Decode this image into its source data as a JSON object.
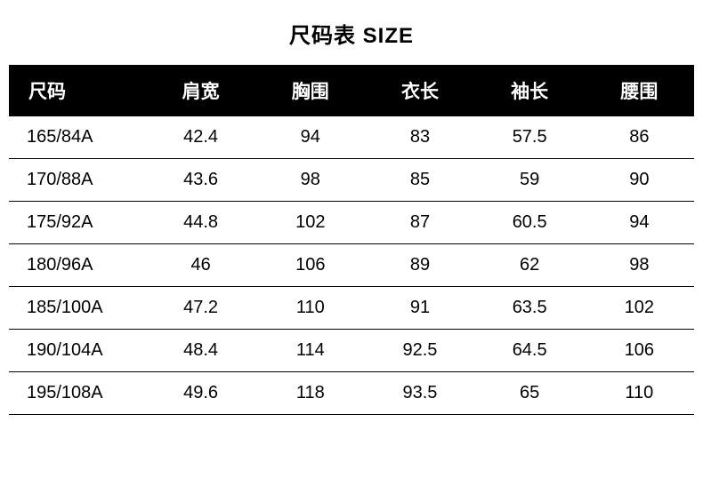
{
  "title": "尺码表 SIZE",
  "table": {
    "type": "table",
    "background_color": "#ffffff",
    "header_bg": "#000000",
    "header_color": "#ffffff",
    "row_border_color": "#000000",
    "text_color": "#000000",
    "header_fontsize": 21,
    "cell_fontsize": 20,
    "columns": [
      "尺码",
      "肩宽",
      "胸围",
      "衣长",
      "袖长",
      "腰围"
    ],
    "rows": [
      [
        "165/84A",
        "42.4",
        "94",
        "83",
        "57.5",
        "86"
      ],
      [
        "170/88A",
        "43.6",
        "98",
        "85",
        "59",
        "90"
      ],
      [
        "175/92A",
        "44.8",
        "102",
        "87",
        "60.5",
        "94"
      ],
      [
        "180/96A",
        "46",
        "106",
        "89",
        "62",
        "98"
      ],
      [
        "185/100A",
        "47.2",
        "110",
        "91",
        "63.5",
        "102"
      ],
      [
        "190/104A",
        "48.4",
        "114",
        "92.5",
        "64.5",
        "106"
      ],
      [
        "195/108A",
        "49.6",
        "118",
        "93.5",
        "65",
        "110"
      ]
    ]
  }
}
